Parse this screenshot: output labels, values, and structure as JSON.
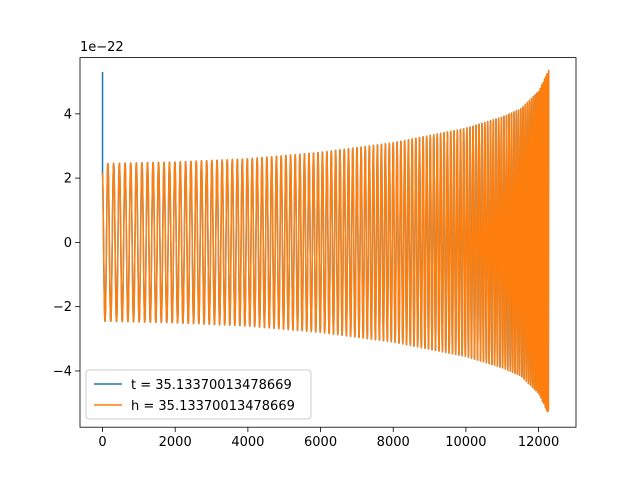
{
  "chart_data": {
    "type": "line",
    "offset_label": "1e−22",
    "xlim": [
      -620,
      13030
    ],
    "ylim": [
      -5.75,
      5.75
    ],
    "x_ticks": [
      0,
      2000,
      4000,
      6000,
      8000,
      10000,
      12000
    ],
    "x_tick_labels": [
      "0",
      "2000",
      "4000",
      "6000",
      "8000",
      "10000",
      "12000"
    ],
    "y_ticks": [
      -4,
      -2,
      0,
      2,
      4
    ],
    "y_tick_labels": [
      "−4",
      "−2",
      "0",
      "2",
      "4"
    ],
    "grid": false,
    "legend_placement": "lower-left",
    "waveform": {
      "x_end": 12280,
      "chirp_cycles": 118,
      "envelope_x": [
        0,
        2000,
        4000,
        6000,
        8000,
        10000,
        11000,
        11500,
        12000,
        12280
      ],
      "envelope_y": [
        2.45,
        2.5,
        2.6,
        2.8,
        3.1,
        3.55,
        3.9,
        4.15,
        4.7,
        5.35
      ]
    },
    "series": [
      {
        "name": "t = 35.13370013478669",
        "color": "#1f77b4",
        "initial_spike": [
          0,
          5.3
        ]
      },
      {
        "name": "h = 35.13370013478669",
        "color": "#ff7f0e"
      }
    ]
  }
}
